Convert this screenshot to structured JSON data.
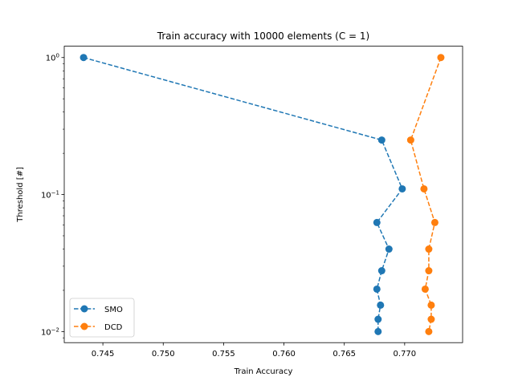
{
  "chart_data": {
    "type": "line",
    "title": "Train accuracy with 10000 elements (C = 1)",
    "xlabel": "Train Accuracy",
    "ylabel": "Threshold [#]",
    "yscale": "log",
    "xlim": [
      0.7418,
      0.7748
    ],
    "ylim": [
      0.0083,
      1.21
    ],
    "grid": false,
    "legend_position": "lower-left",
    "x_ticks": [
      {
        "value": 0.745,
        "label": "0.745"
      },
      {
        "value": 0.75,
        "label": "0.750"
      },
      {
        "value": 0.755,
        "label": "0.755"
      },
      {
        "value": 0.76,
        "label": "0.760"
      },
      {
        "value": 0.765,
        "label": "0.765"
      },
      {
        "value": 0.77,
        "label": "0.770"
      }
    ],
    "y_ticks": [
      {
        "value": 1,
        "base": "10",
        "exp": "0"
      },
      {
        "value": 0.1,
        "base": "10",
        "exp": "−1"
      },
      {
        "value": 0.01,
        "base": "10",
        "exp": "−2"
      }
    ],
    "series": [
      {
        "name": "SMO",
        "color": "#1f77b4",
        "marker": "circle",
        "linestyle": "dashed",
        "x": [
          0.7434,
          0.7681,
          0.7698,
          0.7677,
          0.7687,
          0.7681,
          0.7677,
          0.768,
          0.7678,
          0.7678
        ],
        "y": [
          1.0,
          0.25,
          0.11,
          0.0625,
          0.04,
          0.0278,
          0.0204,
          0.0156,
          0.0123,
          0.01
        ]
      },
      {
        "name": "DCD",
        "color": "#ff7f0e",
        "marker": "circle",
        "linestyle": "dashed",
        "x": [
          0.773,
          0.7705,
          0.7716,
          0.7725,
          0.772,
          0.772,
          0.7717,
          0.7722,
          0.7722,
          0.772
        ],
        "y": [
          1.0,
          0.25,
          0.11,
          0.0625,
          0.04,
          0.0278,
          0.0204,
          0.0156,
          0.0123,
          0.01
        ]
      }
    ]
  }
}
